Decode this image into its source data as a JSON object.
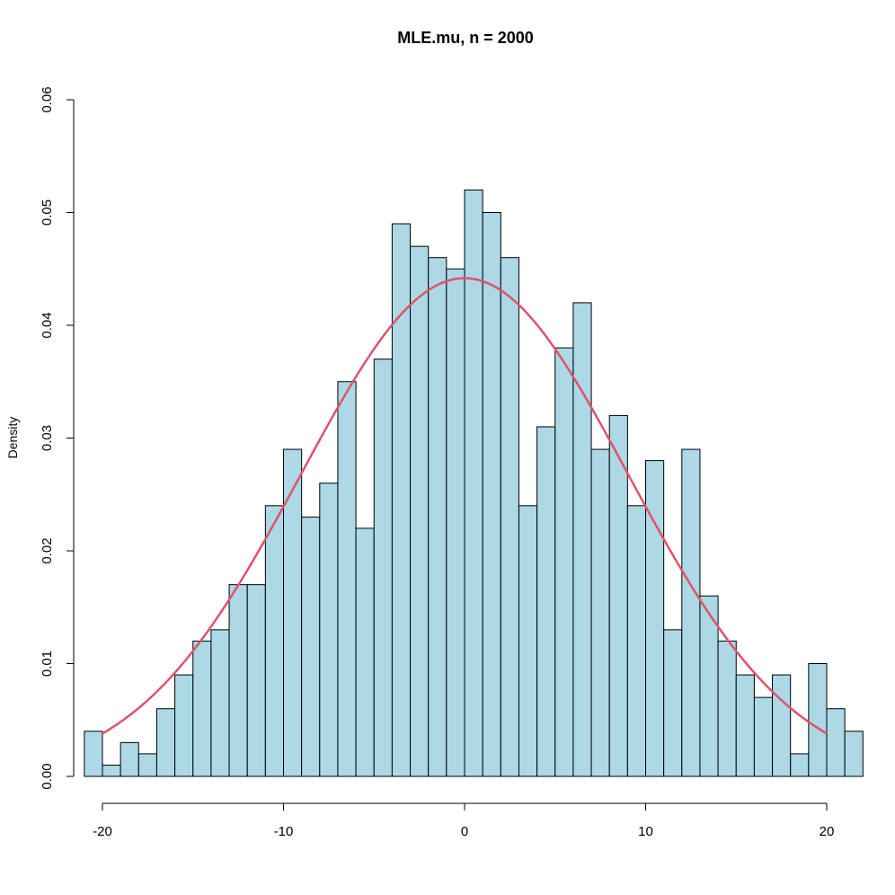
{
  "chart_data": {
    "type": "bar",
    "title": "MLE.mu, n = 2000",
    "xlabel": "",
    "ylabel": "Density",
    "xlim": [
      -20,
      20
    ],
    "ylim": [
      0,
      0.06
    ],
    "bin_width": 1,
    "bin_starts": [
      -21,
      -20,
      -19,
      -18,
      -17,
      -16,
      -15,
      -14,
      -13,
      -12,
      -11,
      -10,
      -9,
      -8,
      -7,
      -6,
      -5,
      -4,
      -3,
      -2,
      -1,
      0,
      1,
      2,
      3,
      4,
      5,
      6,
      7,
      8,
      9,
      10,
      11,
      12,
      13,
      14,
      15,
      16,
      17,
      18,
      19,
      20,
      21
    ],
    "values": [
      0.004,
      0.001,
      0.003,
      0.002,
      0.006,
      0.009,
      0.012,
      0.013,
      0.017,
      0.017,
      0.024,
      0.029,
      0.023,
      0.026,
      0.035,
      0.022,
      0.037,
      0.049,
      0.047,
      0.046,
      0.045,
      0.052,
      0.05,
      0.046,
      0.024,
      0.031,
      0.038,
      0.042,
      0.029,
      0.032,
      0.024,
      0.028,
      0.013,
      0.029,
      0.016,
      0.012,
      0.009,
      0.007,
      0.009,
      0.002,
      0.01,
      0.006,
      0.004
    ],
    "x_ticks": [
      "-20",
      "-10",
      "0",
      "10",
      "20"
    ],
    "x_tick_values": [
      -20,
      -10,
      0,
      10,
      20
    ],
    "y_ticks": [
      "0.00",
      "0.01",
      "0.02",
      "0.03",
      "0.04",
      "0.05",
      "0.06"
    ],
    "y_tick_values": [
      0,
      0.01,
      0.02,
      0.03,
      0.04,
      0.05,
      0.06
    ],
    "curve": {
      "type": "normal-density",
      "mean": 0,
      "sd": 9.03,
      "from": -20,
      "to": 20
    },
    "colors": {
      "bar_fill": "#add8e6",
      "bar_stroke": "#000000",
      "curve": "#df536b"
    }
  }
}
